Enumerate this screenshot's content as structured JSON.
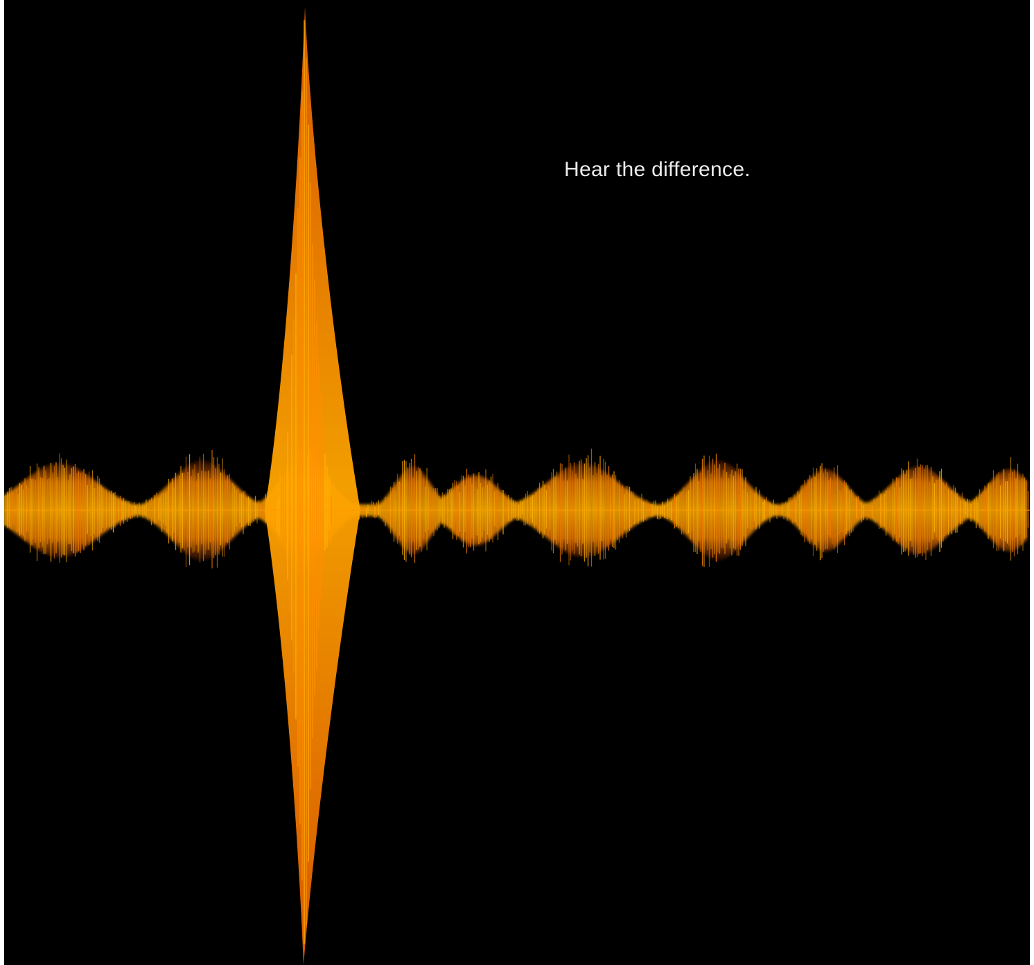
{
  "headline": {
    "text": "Hear the difference."
  },
  "colors": {
    "background": "#000000",
    "headline_text": "#ececec",
    "wave_core": "#ffb000",
    "wave_mid": "#f07d00",
    "wave_edge": "#b83400"
  },
  "graphic": {
    "subject": "audio-waveform",
    "dominant_spike": "single tall transient spike rising far above and below a steady band of repeated bursts"
  }
}
